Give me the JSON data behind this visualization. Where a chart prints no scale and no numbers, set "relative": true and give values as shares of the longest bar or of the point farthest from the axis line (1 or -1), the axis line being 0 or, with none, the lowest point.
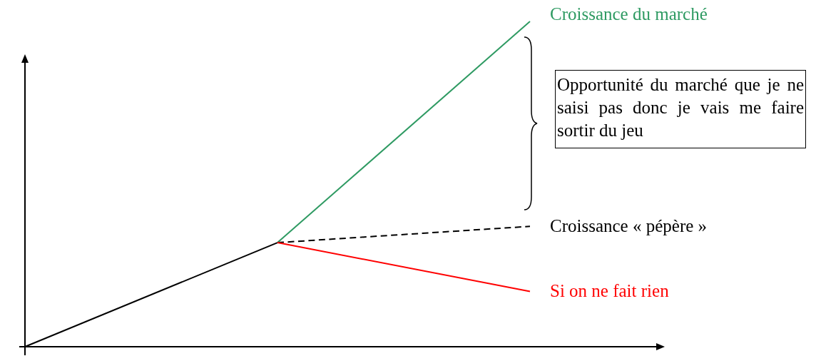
{
  "chart_data": {
    "type": "line",
    "relative": true,
    "marker": "none",
    "categories": [
      null,
      null,
      null
    ],
    "series": [
      {
        "color": "#000000",
        "values": [
          0,
          0.32,
          null
        ]
      },
      {
        "name": "Croissance du marché",
        "color": "#2e9a62",
        "values": [
          null,
          0.32,
          1
        ]
      },
      {
        "name": "Croissance « pépère »",
        "color": "#000000",
        "line_style": "dashed",
        "values": [
          null,
          0.32,
          0.37
        ]
      },
      {
        "name": "Si on ne fait rien",
        "color": "#ff0000",
        "values": [
          null,
          0.32,
          0.17
        ]
      }
    ],
    "annotations": [
      "Opportunité du marché que je ne saisi pas donc je vais me faire sortir du jeu"
    ]
  }
}
